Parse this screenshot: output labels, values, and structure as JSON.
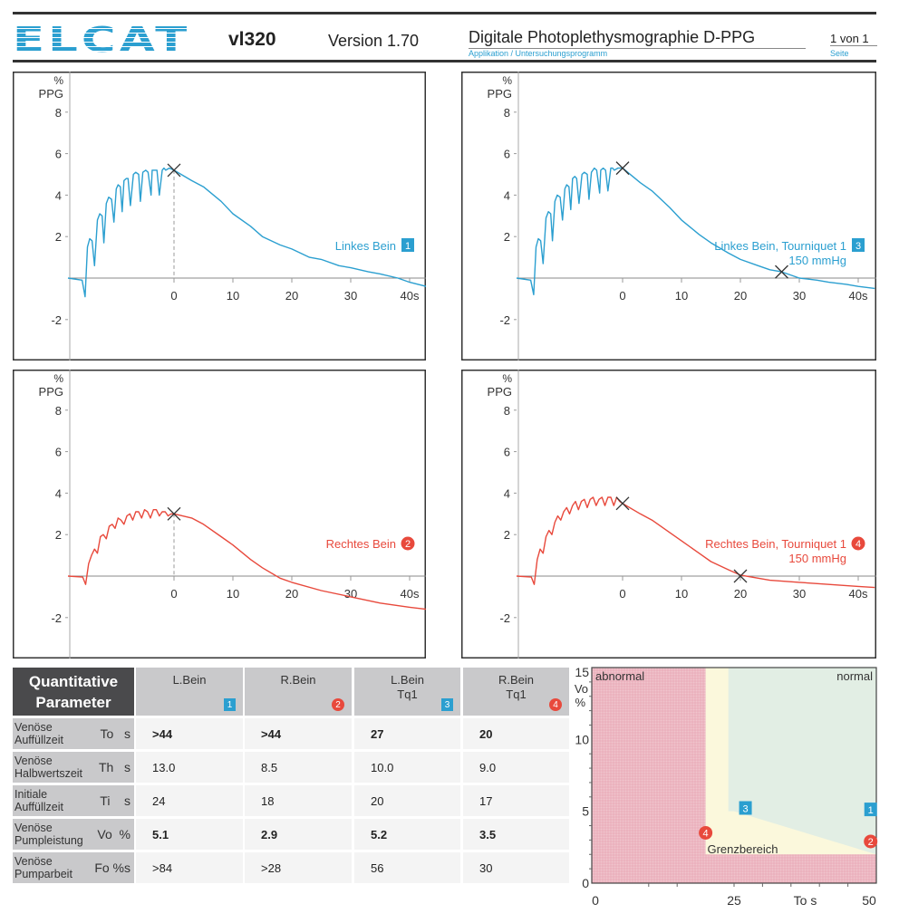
{
  "header": {
    "logo": "ELCAT",
    "model": "vl320",
    "version": "Version 1.70",
    "title": "Digitale Photoplethysmographie D-PPG",
    "subtitle": "Applikation / Untersuchungsprogramm",
    "page": "1 von 1",
    "page_label": "Seite"
  },
  "colors": {
    "blue": "#2b9fd0",
    "red": "#e8493c",
    "abnormal": "#f0c4cd",
    "borderline": "#fbf8dc",
    "normal": "#e2eee4"
  },
  "chart_data": [
    {
      "type": "line",
      "id": "tl",
      "ylabel_top": "%",
      "ylabel": "PPG",
      "x_ticks": [
        0,
        10,
        20,
        30,
        40
      ],
      "x_tick_labels": [
        "0",
        "10",
        "20",
        "30",
        "40s"
      ],
      "y_ticks": [
        8,
        6,
        4,
        2,
        -2
      ],
      "y_tick_labels": [
        "8",
        "6",
        "4",
        "2",
        "-2"
      ],
      "xlim": [
        -17.7,
        42.8
      ],
      "ylim": [
        -3.5,
        9.5
      ],
      "series": [
        {
          "name": "Linkes Bein",
          "badge": "1",
          "badge_shape": "square",
          "color": "#2b9fd0"
        }
      ],
      "markers": [
        {
          "x": 0,
          "y": 5.2,
          "dashed_drop": true
        }
      ]
    },
    {
      "type": "line",
      "id": "tr",
      "ylabel_top": "%",
      "ylabel": "PPG",
      "x_ticks": [
        0,
        10,
        20,
        30,
        40
      ],
      "x_tick_labels": [
        "0",
        "10",
        "20",
        "30",
        "40s"
      ],
      "y_ticks": [
        8,
        6,
        4,
        2,
        -2
      ],
      "y_tick_labels": [
        "8",
        "6",
        "4",
        "2",
        "-2"
      ],
      "xlim": [
        -17.7,
        42.8
      ],
      "ylim": [
        -3.5,
        9.5
      ],
      "series": [
        {
          "name": "Linkes Bein, Tourniquet 1",
          "name2": "150 mmHg",
          "badge": "3",
          "badge_shape": "square",
          "color": "#2b9fd0"
        }
      ],
      "markers": [
        {
          "x": 0,
          "y": 5.3
        },
        {
          "x": 27,
          "y": 0.3
        }
      ]
    },
    {
      "type": "line",
      "id": "bl",
      "ylabel_top": "%",
      "ylabel": "PPG",
      "x_ticks": [
        0,
        10,
        20,
        30,
        40
      ],
      "x_tick_labels": [
        "0",
        "10",
        "20",
        "30",
        "40s"
      ],
      "y_ticks": [
        8,
        6,
        4,
        2,
        -2
      ],
      "y_tick_labels": [
        "8",
        "6",
        "4",
        "2",
        "-2"
      ],
      "xlim": [
        -17.7,
        42.8
      ],
      "ylim": [
        -3.5,
        9.5
      ],
      "series": [
        {
          "name": "Rechtes Bein",
          "badge": "2",
          "badge_shape": "circle",
          "color": "#e8493c"
        }
      ],
      "markers": [
        {
          "x": 0,
          "y": 3.0,
          "dashed_drop": true
        }
      ]
    },
    {
      "type": "line",
      "id": "br",
      "ylabel_top": "%",
      "ylabel": "PPG",
      "x_ticks": [
        0,
        10,
        20,
        30,
        40
      ],
      "x_tick_labels": [
        "0",
        "10",
        "20",
        "30",
        "40s"
      ],
      "y_ticks": [
        8,
        6,
        4,
        2,
        -2
      ],
      "y_tick_labels": [
        "8",
        "6",
        "4",
        "2",
        "-2"
      ],
      "xlim": [
        -17.7,
        42.8
      ],
      "ylim": [
        -3.5,
        9.5
      ],
      "series": [
        {
          "name": "Rechtes Bein, Tourniquet 1",
          "name2": "150 mmHg",
          "badge": "4",
          "badge_shape": "circle",
          "color": "#e8493c"
        }
      ],
      "markers": [
        {
          "x": 0,
          "y": 3.5
        },
        {
          "x": 20,
          "y": 0
        }
      ]
    },
    {
      "type": "scatter",
      "id": "class",
      "xlabel": "To s",
      "ylabel_top": "Vo",
      "ylabel": "%",
      "xlim": [
        0,
        50
      ],
      "ylim": [
        0,
        15
      ],
      "x_tick_labels": [
        "0",
        "25",
        "50"
      ],
      "x_ticks": [
        0,
        25,
        50
      ],
      "x_minor_ticks": [
        10,
        15,
        25,
        30,
        35,
        40,
        45
      ],
      "y_ticks": [
        0,
        5,
        10,
        15
      ],
      "y_tick_labels": [
        "0",
        "5",
        "10",
        "15"
      ],
      "regions": {
        "abnormal": "abnormal",
        "normal": "normal",
        "borderline": "Grenzbereich"
      },
      "points": [
        {
          "label": "1",
          "x": 49,
          "y": 5.1,
          "shape": "square",
          "color": "#2b9fd0"
        },
        {
          "label": "2",
          "x": 49,
          "y": 2.9,
          "shape": "circle",
          "color": "#e8493c"
        },
        {
          "label": "3",
          "x": 27,
          "y": 5.2,
          "shape": "square",
          "color": "#2b9fd0"
        },
        {
          "label": "4",
          "x": 20,
          "y": 3.5,
          "shape": "circle",
          "color": "#e8493c"
        }
      ]
    }
  ],
  "curves": {
    "tl": {
      "x": [
        -18,
        -15.6,
        -15.1,
        -14.7,
        -14.3,
        -13.9,
        -13.5,
        -13,
        -12.6,
        -12.2,
        -11.9,
        -11.5,
        -11.1,
        -10.6,
        -10.2,
        -9.8,
        -9.5,
        -9.1,
        -8.8,
        -8.5,
        -8.1,
        -7.8,
        -7.4,
        -6.9,
        -6.5,
        -6,
        -5.7,
        -5.3,
        -4.8,
        -4.4,
        -3.9,
        -3.7,
        -3.3,
        -2.9,
        -2.5,
        -2,
        -1.7,
        -1.4,
        -0.8,
        0,
        3,
        5,
        8,
        10,
        13,
        15,
        18,
        20,
        23,
        25,
        28,
        30,
        33,
        35,
        38,
        40,
        42.8
      ],
      "y": [
        0,
        -0.1,
        -0.9,
        1.5,
        1.9,
        1.8,
        0.6,
        2.8,
        3.1,
        3.0,
        1.7,
        3.6,
        3.9,
        3.8,
        2.7,
        4.3,
        4.5,
        4.4,
        3.2,
        4.7,
        4.8,
        4.8,
        3.5,
        5.0,
        5.1,
        5.0,
        3.7,
        5.1,
        5.2,
        5.1,
        4.0,
        5.2,
        5.2,
        5.2,
        4.0,
        5.2,
        5.3,
        5.2,
        5.3,
        5.2,
        4.7,
        4.4,
        3.7,
        3.1,
        2.5,
        2.0,
        1.6,
        1.4,
        1.0,
        0.9,
        0.6,
        0.5,
        0.3,
        0.2,
        0.0,
        -0.2,
        -0.4
      ]
    },
    "tr": {
      "x": [
        -18,
        -15.6,
        -15.1,
        -14.7,
        -14.3,
        -13.9,
        -13.5,
        -13,
        -12.6,
        -12.2,
        -11.9,
        -11.5,
        -11.1,
        -10.6,
        -10.2,
        -9.8,
        -9.5,
        -9.1,
        -8.8,
        -8.5,
        -8.1,
        -7.8,
        -7.4,
        -6.9,
        -6.5,
        -6,
        -5.7,
        -5.3,
        -4.8,
        -4.4,
        -3.9,
        -3.7,
        -3.3,
        -2.9,
        -2.5,
        -2,
        -1.7,
        -1.4,
        -0.8,
        0,
        3,
        5,
        8,
        10,
        13,
        15,
        18,
        20,
        23,
        25,
        27,
        30,
        33,
        35,
        38,
        40,
        42.8
      ],
      "y": [
        0,
        -0.1,
        -0.8,
        1.5,
        1.9,
        1.8,
        0.7,
        2.9,
        3.2,
        3.1,
        1.8,
        3.7,
        4.0,
        3.9,
        2.8,
        4.3,
        4.5,
        4.4,
        3.3,
        4.8,
        4.9,
        4.8,
        3.6,
        5.0,
        5.1,
        5.0,
        3.8,
        5.1,
        5.3,
        5.2,
        4.1,
        5.2,
        5.3,
        5.2,
        4.2,
        5.3,
        5.3,
        5.2,
        5.3,
        5.3,
        4.6,
        4.2,
        3.4,
        2.8,
        2.1,
        1.7,
        1.2,
        0.9,
        0.6,
        0.4,
        0.3,
        0.0,
        -0.1,
        -0.2,
        -0.3,
        -0.4,
        -0.5
      ]
    },
    "bl": {
      "x": [
        -18,
        -15.5,
        -15,
        -14.5,
        -14,
        -13.5,
        -13,
        -12.5,
        -12,
        -11.5,
        -11,
        -10.5,
        -10,
        -9.5,
        -9,
        -8.5,
        -8,
        -7.5,
        -7,
        -6.5,
        -6,
        -5.5,
        -5,
        -4.5,
        -4,
        -3.5,
        -3,
        -2.5,
        -2,
        -1.5,
        -1,
        -0.5,
        0,
        3,
        5,
        8,
        10,
        13,
        15,
        18,
        20,
        25,
        30,
        35,
        40,
        42.8
      ],
      "y": [
        0,
        -0.05,
        -0.4,
        0.6,
        1.0,
        1.3,
        1.1,
        1.9,
        2.0,
        1.8,
        2.4,
        2.5,
        2.3,
        2.8,
        2.7,
        2.5,
        2.9,
        3.0,
        2.7,
        3.1,
        3.1,
        2.8,
        3.2,
        3.1,
        2.8,
        3.2,
        3.2,
        2.9,
        3.1,
        3.1,
        2.9,
        3.0,
        3.0,
        2.8,
        2.5,
        1.9,
        1.5,
        0.8,
        0.4,
        -0.1,
        -0.3,
        -0.7,
        -1.0,
        -1.3,
        -1.5,
        -1.6
      ]
    },
    "br": {
      "x": [
        -18,
        -15.5,
        -15,
        -14.5,
        -14,
        -13.5,
        -13,
        -12.5,
        -12,
        -11.5,
        -11,
        -10.5,
        -10,
        -9.5,
        -9,
        -8.5,
        -8,
        -7.5,
        -7,
        -6.5,
        -6,
        -5.5,
        -5,
        -4.5,
        -4,
        -3.5,
        -3,
        -2.5,
        -2,
        -1.5,
        -1,
        -0.5,
        0,
        3,
        5,
        8,
        10,
        13,
        15,
        18,
        20,
        25,
        30,
        35,
        40,
        42.8
      ],
      "y": [
        0,
        -0.05,
        -0.4,
        0.8,
        1.3,
        1.1,
        1.9,
        2.2,
        2.0,
        2.6,
        2.9,
        2.7,
        3.1,
        3.3,
        3.0,
        3.4,
        3.6,
        3.2,
        3.6,
        3.7,
        3.3,
        3.7,
        3.8,
        3.4,
        3.7,
        3.8,
        3.4,
        3.8,
        3.8,
        3.4,
        3.8,
        3.6,
        3.5,
        3.0,
        2.7,
        2.1,
        1.7,
        1.1,
        0.7,
        0.3,
        0.05,
        -0.2,
        -0.3,
        -0.4,
        -0.5,
        -0.55
      ]
    }
  },
  "table": {
    "title": [
      "Quantitative",
      "Parameter"
    ],
    "columns": [
      {
        "label": [
          "L.Bein",
          ""
        ],
        "badge": "1",
        "shape": "square"
      },
      {
        "label": [
          "R.Bein",
          ""
        ],
        "badge": "2",
        "shape": "circle"
      },
      {
        "label": [
          "L.Bein",
          "Tq1"
        ],
        "badge": "3",
        "shape": "square"
      },
      {
        "label": [
          "R.Bein",
          "Tq1"
        ],
        "badge": "4",
        "shape": "circle"
      }
    ],
    "rows": [
      {
        "name": [
          "Venöse",
          "Auffüllzeit"
        ],
        "symbol": "To   s",
        "bold": true,
        "values": [
          ">44",
          ">44",
          "27",
          "20"
        ]
      },
      {
        "name": [
          "Venöse",
          "Halbwertszeit"
        ],
        "symbol": "Th   s",
        "bold": false,
        "values": [
          "13.0",
          "8.5",
          "10.0",
          "9.0"
        ]
      },
      {
        "name": [
          "Initiale",
          "Auffüllzeit"
        ],
        "symbol": "Ti    s",
        "bold": false,
        "values": [
          "24",
          "18",
          "20",
          "17"
        ]
      },
      {
        "name": [
          "Venöse",
          "Pumpleistung"
        ],
        "symbol": "Vo  %",
        "bold": true,
        "values": [
          "5.1",
          "2.9",
          "5.2",
          "3.5"
        ]
      },
      {
        "name": [
          "Venöse",
          "Pumparbeit"
        ],
        "symbol": "Fo %s",
        "bold": false,
        "values": [
          ">84",
          ">28",
          "56",
          "30"
        ]
      }
    ]
  }
}
